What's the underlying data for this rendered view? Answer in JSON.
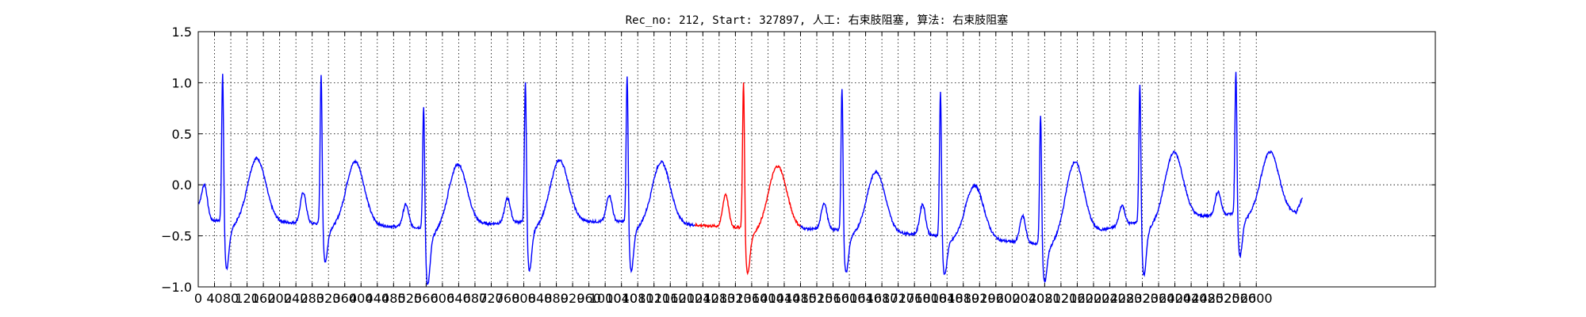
{
  "chart_data": {
    "type": "line",
    "title": "Rec_no: 212, Start: 327897, 人工: 右束肢阻塞, 算法: 右束肢阻塞",
    "xlabel": "",
    "ylabel": "",
    "xlim": [
      0,
      1520
    ],
    "ylim": [
      -1.0,
      1.5
    ],
    "grid": true,
    "x_tick_labels": [
      "0",
      "40",
      "80",
      "120",
      "160",
      "200",
      "240",
      "280",
      "320",
      "360",
      "400",
      "440",
      "480",
      "520",
      "560",
      "600",
      "640",
      "680",
      "720",
      "760",
      "800",
      "840",
      "880",
      "920",
      "960",
      "1000",
      "1040",
      "1080",
      "1120",
      "1160",
      "1200",
      "1240",
      "1280",
      "1320",
      "1360",
      "1400",
      "1440",
      "1480",
      "1520",
      "1560",
      "1600",
      "1640",
      "1680",
      "1720",
      "1760",
      "1800",
      "1840",
      "1880",
      "1920",
      "1960",
      "2000",
      "2040",
      "2080",
      "2120",
      "2160",
      "2200",
      "2240",
      "2280",
      "2320",
      "2360",
      "2400",
      "2440",
      "2480",
      "2520",
      "2560",
      "2600"
    ],
    "y_ticks": [
      -1.0,
      -0.5,
      0.0,
      0.5,
      1.0,
      1.5
    ],
    "y_tick_labels": [
      "−1.0",
      "−0.5",
      "0.0",
      "0.5",
      "1.0",
      "1.5"
    ],
    "colors": {
      "normal": "#0000ff",
      "highlight": "#ff0000"
    },
    "beats": [
      {
        "r_x": 30,
        "r_peak": 1.15,
        "q_min": -0.82,
        "p_amp": -0.05,
        "t_amp": 0.27,
        "baseline": -0.35,
        "highlight": false
      },
      {
        "r_x": 151,
        "r_peak": 1.14,
        "q_min": -0.75,
        "p_amp": -0.08,
        "t_amp": 0.24,
        "baseline": -0.38,
        "highlight": false
      },
      {
        "r_x": 277,
        "r_peak": 0.85,
        "q_min": -0.98,
        "p_amp": -0.2,
        "t_amp": 0.18,
        "baseline": -0.42,
        "highlight": false
      },
      {
        "r_x": 402,
        "r_peak": 1.08,
        "q_min": -0.84,
        "p_amp": -0.12,
        "t_amp": 0.24,
        "baseline": -0.36,
        "highlight": false
      },
      {
        "r_x": 527,
        "r_peak": 1.14,
        "q_min": -0.84,
        "p_amp": -0.1,
        "t_amp": 0.24,
        "baseline": -0.36,
        "highlight": false
      },
      {
        "r_x": 670,
        "r_peak": 1.07,
        "q_min": -0.87,
        "p_amp": -0.1,
        "t_amp": 0.19,
        "baseline": -0.42,
        "highlight": true
      },
      {
        "r_x": 791,
        "r_peak": 1.01,
        "q_min": -0.86,
        "p_amp": -0.18,
        "t_amp": 0.15,
        "baseline": -0.44,
        "highlight": false
      },
      {
        "r_x": 912,
        "r_peak": 0.97,
        "q_min": -0.88,
        "p_amp": -0.2,
        "t_amp": 0.02,
        "baseline": -0.5,
        "highlight": false
      },
      {
        "r_x": 1035,
        "r_peak": 0.74,
        "q_min": -0.96,
        "p_amp": -0.32,
        "t_amp": 0.15,
        "baseline": -0.58,
        "highlight": false
      },
      {
        "r_x": 1157,
        "r_peak": 1.07,
        "q_min": -0.89,
        "p_amp": -0.16,
        "t_amp": 0.29,
        "baseline": -0.36,
        "highlight": false
      },
      {
        "r_x": 1275,
        "r_peak": 1.18,
        "q_min": -0.7,
        "p_amp": -0.05,
        "t_amp": 0.32,
        "baseline": -0.28,
        "highlight": false
      }
    ],
    "signal_start": {
      "x": 0,
      "y": -0.2
    },
    "signal_end": {
      "x": 1357,
      "y": -0.12
    }
  }
}
